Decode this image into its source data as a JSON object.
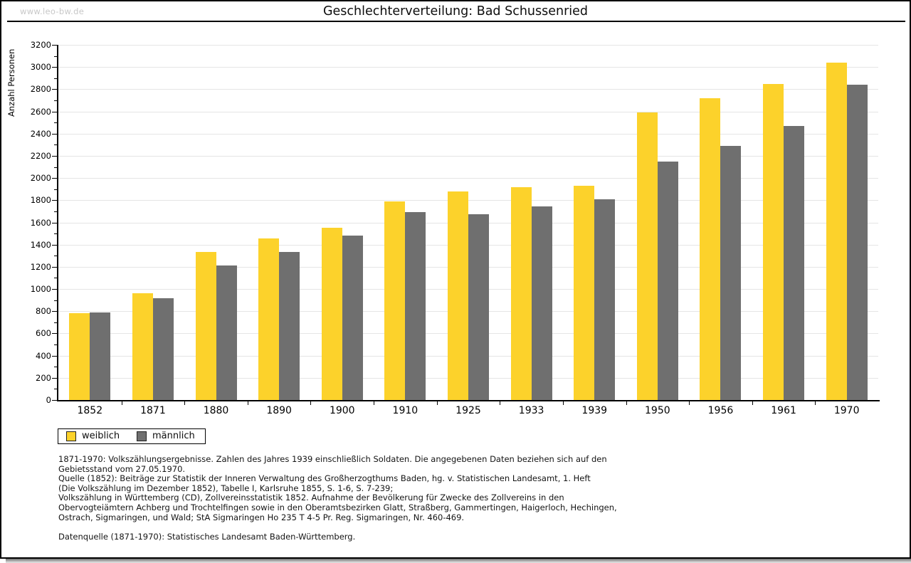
{
  "watermark": "www.leo-bw.de",
  "title": "Geschlechterverteilung: Bad Schussenried",
  "colors": {
    "weiblich": "#FCD22B",
    "maennlich": "#6F6F6F",
    "gridline": "#E5E5E5",
    "watermark": "#C8C8C8",
    "axis": "#000000"
  },
  "legend": [
    {
      "label": "weiblich",
      "color": "#FCD22B"
    },
    {
      "label": "männlich",
      "color": "#6F6F6F"
    }
  ],
  "footnote_lines": [
    "1871-1970: Volkszählungsergebnisse. Zahlen des Jahres 1939 einschließlich Soldaten. Die angegebenen Daten beziehen sich auf den",
    "Gebietsstand vom 27.05.1970.",
    "Quelle (1852): Beiträge zur Statistik der Inneren Verwaltung des Großherzogthums Baden, hg. v. Statistischen Landesamt, 1. Heft",
    "(Die Volkszählung im Dezember 1852), Tabelle I, Karlsruhe 1855, S. 1-6, S. 7-239;",
    "Volkszählung in Württemberg (CD), Zollvereinsstatistik 1852. Aufnahme der Bevölkerung für Zwecke des Zollvereins in den",
    "Obervogteiämtern Achberg und Trochtelfingen sowie in den Oberamtsbezirken Glatt, Straßberg, Gammertingen, Haigerloch, Hechingen,",
    "Ostrach, Sigmaringen, und Wald; StA Sigmaringen Ho 235 T 4-5 Pr. Reg. Sigmaringen, Nr. 460-469.",
    "",
    "Datenquelle (1871-1970): Statistisches Landesamt Baden-Württemberg."
  ],
  "chart_data": {
    "type": "bar",
    "title": "Geschlechterverteilung: Bad Schussenried",
    "xlabel": "",
    "ylabel": "Anzahl Personen",
    "ylim": [
      0,
      3200
    ],
    "y_major_step": 200,
    "y_minor_step": 100,
    "grid": true,
    "legend_position": "bottom-left",
    "categories": [
      "1852",
      "1871",
      "1880",
      "1890",
      "1900",
      "1910",
      "1925",
      "1933",
      "1939",
      "1950",
      "1956",
      "1961",
      "1970"
    ],
    "series": [
      {
        "name": "weiblich",
        "color": "#FCD22B",
        "values": [
          780,
          960,
          1335,
          1455,
          1555,
          1790,
          1880,
          1920,
          1930,
          2590,
          2720,
          2845,
          3040
        ]
      },
      {
        "name": "männlich",
        "color": "#6F6F6F",
        "values": [
          790,
          915,
          1215,
          1335,
          1480,
          1690,
          1675,
          1745,
          1810,
          2150,
          2290,
          2470,
          2840
        ]
      }
    ]
  }
}
